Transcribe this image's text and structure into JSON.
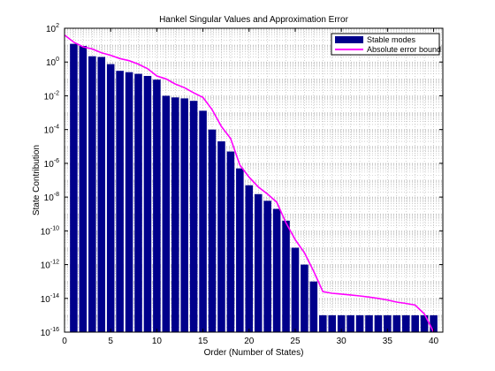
{
  "chart_data": {
    "type": "bar",
    "title": "Hankel Singular Values and Approximation Error",
    "xlabel": "Order (Number of States)",
    "ylabel": "State Contribution",
    "xlim": [
      0,
      41
    ],
    "ylim_exponent": [
      -16,
      2
    ],
    "y_scale": "log",
    "x_ticks": [
      0,
      5,
      10,
      15,
      20,
      25,
      30,
      35,
      40
    ],
    "y_ticks_exponent": [
      -16,
      -14,
      -12,
      -10,
      -8,
      -6,
      -4,
      -2,
      0,
      2
    ],
    "grid": true,
    "legend_position": "top-right",
    "colors": {
      "bars": "#00008b",
      "line": "#ff00ff"
    },
    "series": [
      {
        "name": "Stable modes",
        "kind": "bar",
        "x": [
          1,
          2,
          3,
          4,
          5,
          6,
          7,
          8,
          9,
          10,
          11,
          12,
          13,
          14,
          15,
          16,
          17,
          18,
          19,
          20,
          21,
          22,
          23,
          24,
          25,
          26,
          27,
          28,
          29,
          30,
          31,
          32,
          33,
          34,
          35,
          36,
          37,
          38,
          39,
          40
        ],
        "values": [
          12,
          9,
          2.2,
          2,
          0.75,
          0.3,
          0.25,
          0.2,
          0.15,
          0.09,
          0.01,
          0.008,
          0.007,
          0.005,
          0.0013,
          0.0001,
          2e-05,
          5e-06,
          5e-07,
          5e-08,
          1.5e-08,
          6e-09,
          2e-09,
          4e-10,
          1e-11,
          1e-12,
          1e-13,
          1e-15,
          1e-15,
          1e-15,
          1e-15,
          1e-15,
          1e-15,
          1e-15,
          1e-15,
          1e-15,
          1e-15,
          1e-15,
          1e-15,
          1e-15
        ]
      },
      {
        "name": "Absolute error bound",
        "kind": "line",
        "x": [
          0,
          1,
          2,
          3,
          4,
          5,
          6,
          7,
          8,
          9,
          10,
          11,
          12,
          13,
          14,
          15,
          16,
          17,
          18,
          19,
          20,
          21,
          22,
          23,
          24,
          25,
          26,
          27,
          28,
          29,
          30,
          31,
          32,
          33,
          34,
          35,
          36,
          37,
          38,
          39,
          40
        ],
        "values": [
          40,
          15,
          8,
          6,
          3.5,
          2.5,
          1.6,
          1.2,
          0.75,
          0.4,
          0.15,
          0.1,
          0.05,
          0.03,
          0.015,
          0.008,
          0.0015,
          0.00015,
          3e-05,
          8e-07,
          1.5e-07,
          4e-08,
          1.5e-08,
          5e-09,
          3e-10,
          3e-11,
          5e-12,
          4e-13,
          2.5e-14,
          2e-14,
          1.8e-14,
          1.6e-14,
          1.4e-14,
          1.2e-14,
          1e-14,
          8e-15,
          6e-15,
          5e-15,
          4e-15,
          1.2e-15,
          1e-16
        ]
      }
    ]
  }
}
